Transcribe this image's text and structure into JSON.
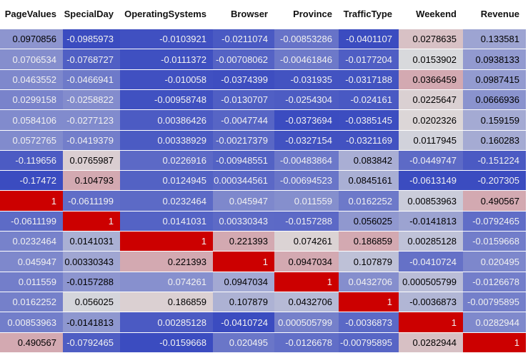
{
  "table": {
    "columns": [
      "PageValues",
      "SpecialDay",
      "OperatingSystems",
      "Browser",
      "Province",
      "TrafficType",
      "Weekend",
      "Revenue"
    ],
    "rows": [
      [
        "0.0970856",
        "-0.0985973",
        "-0.0103921",
        "-0.0211074",
        "-0.00853286",
        "-0.0401107",
        "0.0278635",
        "0.133581"
      ],
      [
        "0.0706534",
        "-0.0768727",
        "-0.0111372",
        "-0.00708062",
        "-0.00461846",
        "-0.0177204",
        "0.0153902",
        "0.0938133"
      ],
      [
        "0.0463552",
        "-0.0466941",
        "-0.010058",
        "-0.0374399",
        "-0.031935",
        "-0.0317188",
        "0.0366459",
        "0.0987415"
      ],
      [
        "0.0299158",
        "-0.0258822",
        "-0.00958748",
        "-0.0130707",
        "-0.0254304",
        "-0.024161",
        "0.0225647",
        "0.0666936"
      ],
      [
        "0.0584106",
        "-0.0277123",
        "0.00386426",
        "-0.0047744",
        "-0.0373694",
        "-0.0385145",
        "0.0202326",
        "0.159159"
      ],
      [
        "0.0572765",
        "-0.0419379",
        "0.00338929",
        "-0.00217379",
        "-0.0327154",
        "-0.0321169",
        "0.0117945",
        "0.160283"
      ],
      [
        "-0.119656",
        "0.0765987",
        "0.0226916",
        "-0.00948551",
        "-0.00483864",
        "0.083842",
        "-0.0449747",
        "-0.151224"
      ],
      [
        "-0.17472",
        "0.104793",
        "0.0124945",
        "0.000344561",
        "-0.00694523",
        "0.0845161",
        "-0.0613149",
        "-0.207305"
      ],
      [
        "1",
        "-0.0611199",
        "0.0232464",
        "0.045947",
        "0.011559",
        "0.0162252",
        "0.00853963",
        "0.490567"
      ],
      [
        "-0.0611199",
        "1",
        "0.0141031",
        "0.00330343",
        "-0.0157288",
        "0.056025",
        "-0.0141813",
        "-0.0792465"
      ],
      [
        "0.0232464",
        "0.0141031",
        "1",
        "0.221393",
        "0.074261",
        "0.186859",
        "0.00285128",
        "-0.0159668"
      ],
      [
        "0.045947",
        "0.00330343",
        "0.221393",
        "1",
        "0.0947034",
        "0.107879",
        "-0.0410724",
        "0.020495"
      ],
      [
        "0.011559",
        "-0.0157288",
        "0.074261",
        "0.0947034",
        "1",
        "0.0432706",
        "0.000505799",
        "-0.0126678"
      ],
      [
        "0.0162252",
        "0.056025",
        "0.186859",
        "0.107879",
        "0.0432706",
        "1",
        "-0.0036873",
        "-0.00795895"
      ],
      [
        "0.00853963",
        "-0.0141813",
        "0.00285128",
        "-0.0410724",
        "0.000505799",
        "-0.0036873",
        "1",
        "0.0282944"
      ],
      [
        "0.490567",
        "-0.0792465",
        "-0.0159668",
        "0.020495",
        "-0.0126678",
        "-0.00795895",
        "0.0282944",
        "1"
      ]
    ]
  },
  "colors": {
    "scale_min": "#3b4cc0",
    "scale_mid": "#dddddd",
    "scale_max": "#b40426",
    "max_cell": "#cc0000",
    "text_dark": "#000000",
    "text_light": "#f1f1f1"
  }
}
